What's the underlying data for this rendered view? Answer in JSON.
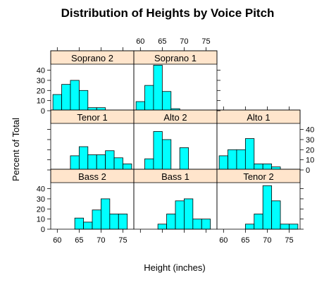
{
  "chart_data": {
    "type": "bar",
    "title": "Distribution of Heights by Voice Pitch",
    "xlabel": "Height (inches)",
    "ylabel": "Percent of Total",
    "xlim": [
      58.5,
      77.5
    ],
    "ylim": [
      0,
      46
    ],
    "x_ticks": [
      60,
      65,
      70,
      75
    ],
    "y_ticks": [
      0,
      10,
      20,
      30,
      40
    ],
    "bin_width": 2,
    "bar_color": "#00ffff",
    "strip_color": "#ffe5cc",
    "panels": [
      {
        "name": "Soprano 2",
        "row": 0,
        "col": 0,
        "bins_start": 59,
        "values": [
          16,
          26,
          30,
          20,
          3,
          3
        ]
      },
      {
        "name": "Soprano 1",
        "row": 0,
        "col": 1,
        "bins_start": 59,
        "values": [
          9,
          25,
          45,
          19,
          2
        ]
      },
      {
        "name": "Tenor 1",
        "row": 1,
        "col": 0,
        "bins_start": 63,
        "values": [
          14,
          23,
          15,
          15,
          19,
          12,
          6
        ]
      },
      {
        "name": "Alto 2",
        "row": 1,
        "col": 1,
        "bins_start": 61,
        "values": [
          11,
          38,
          30,
          0,
          22
        ]
      },
      {
        "name": "Alto 1",
        "row": 1,
        "col": 2,
        "bins_start": 59,
        "values": [
          14,
          20,
          20,
          31,
          6,
          6,
          3
        ]
      },
      {
        "name": "Bass 2",
        "row": 2,
        "col": 0,
        "bins_start": 64,
        "values": [
          11,
          7,
          19,
          30,
          15,
          15
        ]
      },
      {
        "name": "Bass 1",
        "row": 2,
        "col": 1,
        "bins_start": 64,
        "values": [
          5,
          15,
          28,
          30,
          10,
          10
        ]
      },
      {
        "name": "Tenor 2",
        "row": 2,
        "col": 2,
        "bins_start": 65,
        "values": [
          5,
          15,
          43,
          28,
          5,
          5
        ]
      }
    ]
  }
}
